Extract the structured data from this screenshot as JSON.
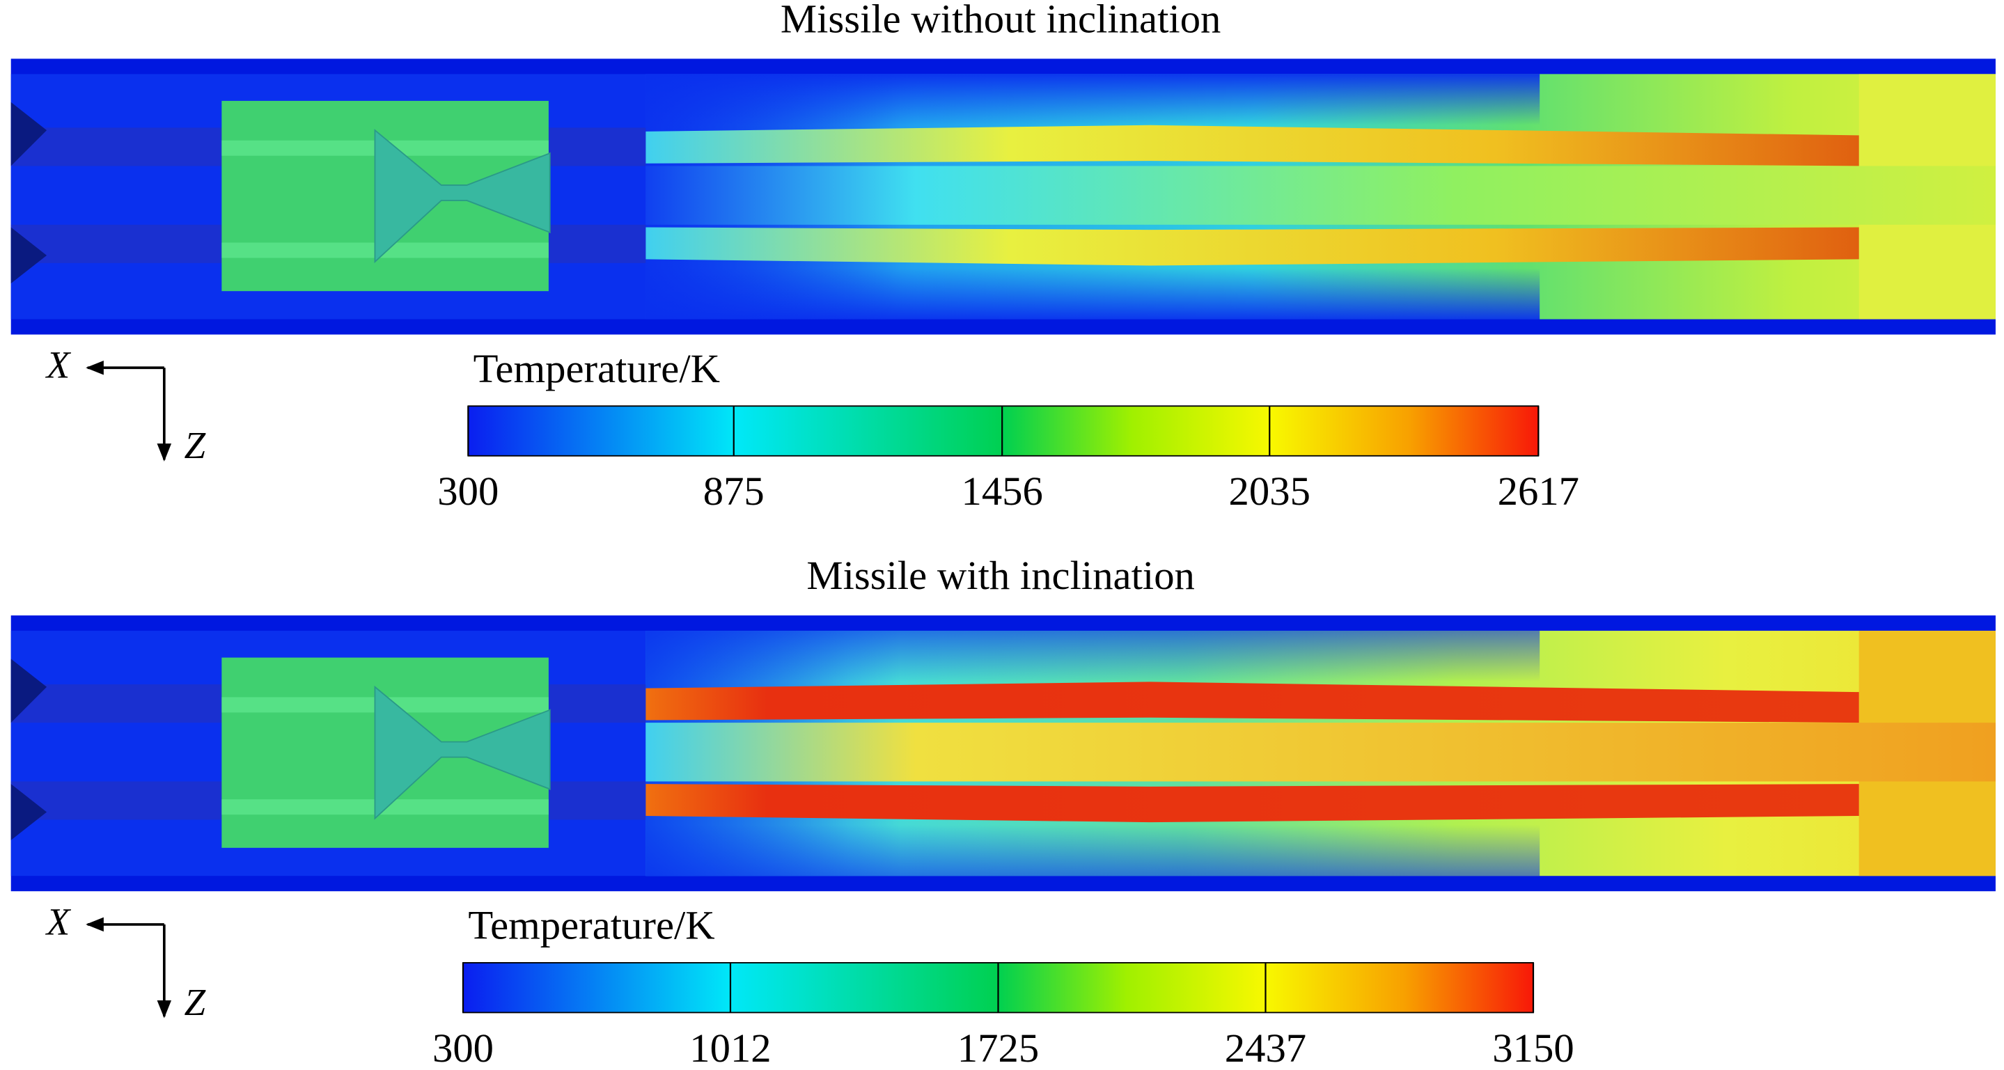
{
  "panels": [
    {
      "title": "Missile without inclination",
      "axes": {
        "x": "X",
        "z": "Z"
      },
      "colorbar": {
        "label": "Temperature/K",
        "ticks": [
          300,
          875,
          1456,
          2035,
          2617
        ]
      }
    },
    {
      "title": "Missile with inclination",
      "axes": {
        "x": "X",
        "z": "Z"
      },
      "colorbar": {
        "label": "Temperature/K",
        "ticks": [
          300,
          1012,
          1725,
          2437,
          3150
        ]
      }
    }
  ]
}
